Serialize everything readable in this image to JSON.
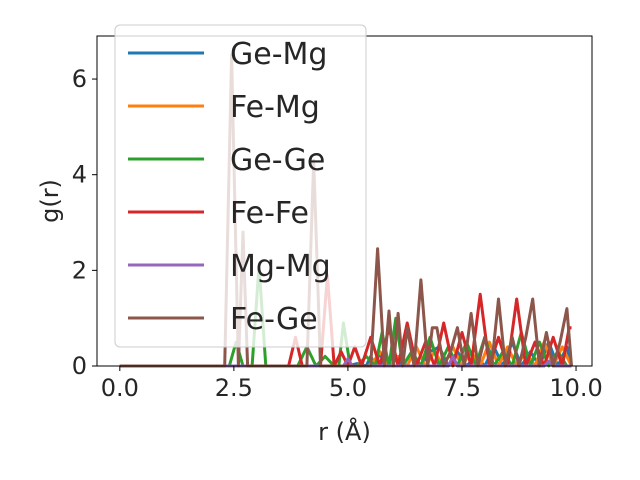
{
  "chart_data": {
    "type": "line",
    "title": "",
    "xlabel": "r (Å)",
    "ylabel": "g(r)",
    "xlim": [
      -0.5,
      10.35
    ],
    "ylim": [
      0,
      6.9
    ],
    "xticks": [
      0.0,
      2.5,
      5.0,
      7.5,
      10.0
    ],
    "xtick_labels": [
      "0.0",
      "2.5",
      "5.0",
      "7.5",
      "10.0"
    ],
    "yticks": [
      0,
      2,
      4,
      6
    ],
    "ytick_labels": [
      "0",
      "2",
      "4",
      "6"
    ],
    "grid": false,
    "legend_position": "upper-left",
    "series": [
      {
        "name": "Ge-Mg",
        "color": "#1f77b4",
        "x": [
          0.0,
          5.0,
          5.2,
          5.4,
          5.5,
          5.6,
          5.7,
          5.8,
          6.0,
          6.2,
          6.4,
          6.6,
          6.8,
          7.0,
          7.2,
          7.4,
          7.6,
          7.8,
          8.0,
          8.2,
          8.4,
          8.6,
          8.8,
          9.0,
          9.2,
          9.4,
          9.6,
          9.8,
          9.9
        ],
        "values": [
          0.0,
          0.0,
          0.05,
          0.0,
          0.2,
          0.0,
          0.3,
          0.0,
          0.2,
          0.0,
          0.3,
          0.0,
          0.3,
          0.4,
          0.0,
          0.3,
          0.0,
          0.2,
          0.0,
          0.4,
          0.0,
          0.5,
          0.0,
          0.3,
          0.0,
          0.5,
          0.0,
          0.4,
          0.0
        ]
      },
      {
        "name": "Fe-Mg",
        "color": "#ff7f0e",
        "x": [
          0.0,
          5.5,
          5.7,
          5.9,
          6.1,
          6.3,
          6.5,
          6.7,
          6.9,
          7.1,
          7.3,
          7.5,
          7.7,
          7.9,
          8.1,
          8.3,
          8.5,
          8.7,
          8.9,
          9.1,
          9.3,
          9.5,
          9.7,
          9.9
        ],
        "values": [
          0.0,
          0.0,
          0.3,
          0.0,
          0.2,
          0.0,
          0.4,
          0.0,
          0.3,
          0.0,
          0.4,
          0.0,
          0.3,
          0.0,
          0.5,
          0.0,
          0.4,
          0.0,
          0.3,
          0.0,
          0.5,
          0.0,
          0.4,
          0.0
        ]
      },
      {
        "name": "Ge-Ge",
        "color": "#2ca02c",
        "x": [
          0.0,
          2.4,
          2.55,
          2.7,
          2.9,
          3.05,
          3.2,
          3.4,
          3.9,
          4.1,
          4.3,
          4.5,
          4.7,
          4.8,
          4.9,
          5.05,
          5.2,
          5.4,
          5.6,
          5.75,
          5.9,
          6.05,
          6.2,
          6.4,
          6.6,
          6.8,
          7.0,
          7.2,
          7.4,
          7.6,
          7.8,
          8.0,
          8.2,
          8.4,
          8.6,
          8.8,
          9.0,
          9.2,
          9.4,
          9.6,
          9.8,
          9.9
        ],
        "values": [
          0.0,
          0.0,
          0.5,
          0.0,
          0.0,
          2.1,
          0.0,
          0.0,
          0.0,
          0.4,
          0.0,
          0.2,
          0.0,
          0.0,
          0.9,
          0.0,
          0.0,
          0.2,
          0.0,
          0.7,
          0.0,
          1.0,
          0.0,
          0.3,
          0.0,
          0.6,
          0.0,
          0.4,
          0.0,
          0.5,
          0.0,
          0.6,
          0.0,
          0.3,
          0.0,
          0.7,
          0.0,
          0.5,
          0.0,
          0.3,
          0.0,
          0.0
        ]
      },
      {
        "name": "Fe-Fe",
        "color": "#d62728",
        "x": [
          0.0,
          3.7,
          3.85,
          4.0,
          4.4,
          4.55,
          4.7,
          4.85,
          5.0,
          5.15,
          5.3,
          5.5,
          5.7,
          5.9,
          6.1,
          6.3,
          6.5,
          6.7,
          6.9,
          7.1,
          7.3,
          7.5,
          7.7,
          7.9,
          8.1,
          8.3,
          8.5,
          8.7,
          8.9,
          9.1,
          9.3,
          9.5,
          9.7,
          9.85,
          9.9
        ],
        "values": [
          0.0,
          0.0,
          0.6,
          0.0,
          0.0,
          1.9,
          0.0,
          0.3,
          0.0,
          0.4,
          0.0,
          0.6,
          0.0,
          0.8,
          0.0,
          0.9,
          0.0,
          0.5,
          0.0,
          0.9,
          0.0,
          0.7,
          0.0,
          1.5,
          0.0,
          0.6,
          0.0,
          1.4,
          0.0,
          0.5,
          0.0,
          0.6,
          0.0,
          0.8,
          0.8
        ]
      },
      {
        "name": "Mg-Mg",
        "color": "#9467bd",
        "x": [
          0.0,
          4.9,
          5.0,
          5.1,
          7.2,
          7.3,
          7.4,
          9.3,
          9.4,
          9.5,
          9.9
        ],
        "values": [
          0.0,
          0.0,
          0.15,
          0.0,
          0.0,
          0.2,
          0.0,
          0.0,
          0.1,
          0.0,
          0.0
        ]
      },
      {
        "name": "Fe-Ge",
        "color": "#8c564b",
        "x": [
          0.0,
          2.3,
          2.45,
          2.6,
          2.7,
          2.8,
          4.1,
          4.25,
          4.4,
          4.6,
          5.0,
          5.2,
          5.35,
          5.5,
          5.65,
          5.8,
          5.9,
          6.0,
          6.1,
          6.2,
          6.3,
          6.45,
          6.6,
          6.75,
          6.85,
          6.95,
          7.1,
          7.25,
          7.4,
          7.55,
          7.7,
          7.85,
          8.0,
          8.15,
          8.3,
          8.45,
          8.6,
          8.75,
          8.9,
          9.05,
          9.2,
          9.35,
          9.5,
          9.65,
          9.8,
          9.9
        ],
        "values": [
          0.0,
          0.0,
          6.5,
          0.0,
          2.8,
          0.0,
          0.0,
          4.3,
          0.0,
          0.0,
          0.0,
          0.0,
          0.0,
          0.0,
          2.45,
          0.0,
          1.15,
          0.0,
          1.1,
          0.0,
          0.8,
          0.0,
          1.8,
          0.0,
          0.8,
          0.8,
          0.0,
          0.3,
          0.8,
          0.0,
          1.1,
          0.0,
          0.6,
          0.0,
          1.4,
          0.0,
          0.6,
          0.0,
          0.6,
          1.4,
          0.0,
          0.7,
          0.0,
          0.5,
          1.2,
          0.0
        ]
      }
    ]
  }
}
